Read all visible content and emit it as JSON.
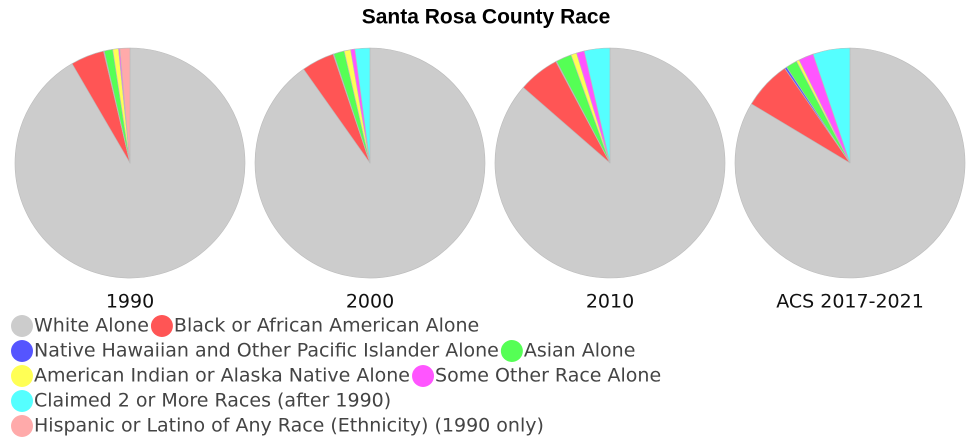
{
  "chart_data": {
    "type": "pie",
    "title": "Santa Rosa County Race",
    "categories": [
      "White Alone",
      "Black or African American Alone",
      "Native Hawaiian and Other Pacific Islander Alone",
      "Asian Alone",
      "American Indian or Alaska Native Alone",
      "Some Other Race Alone",
      "Claimed 2 or More Races (after 1990)",
      "Hispanic or Latino of Any Race (Ethnicity) (1990 only)"
    ],
    "colors": [
      "#cccccc",
      "#ff5555",
      "#5555ff",
      "#55ff55",
      "#ffff55",
      "#ff55ff",
      "#55ffff",
      "#ffaaaa"
    ],
    "series": [
      {
        "name": "1990",
        "values": [
          91.6,
          4.7,
          0.1,
          1.2,
          0.8,
          0.2,
          null,
          1.4
        ]
      },
      {
        "name": "2000",
        "values": [
          90.2,
          4.6,
          0.1,
          1.5,
          0.9,
          0.6,
          2.1,
          null
        ]
      },
      {
        "name": "2010",
        "values": [
          86.4,
          5.8,
          0.1,
          2.2,
          0.8,
          1.1,
          3.6,
          null
        ]
      },
      {
        "name": "ACS 2017-2021",
        "values": [
          83.6,
          6.8,
          0.3,
          1.6,
          0.4,
          2.1,
          5.2,
          null
        ]
      }
    ]
  }
}
